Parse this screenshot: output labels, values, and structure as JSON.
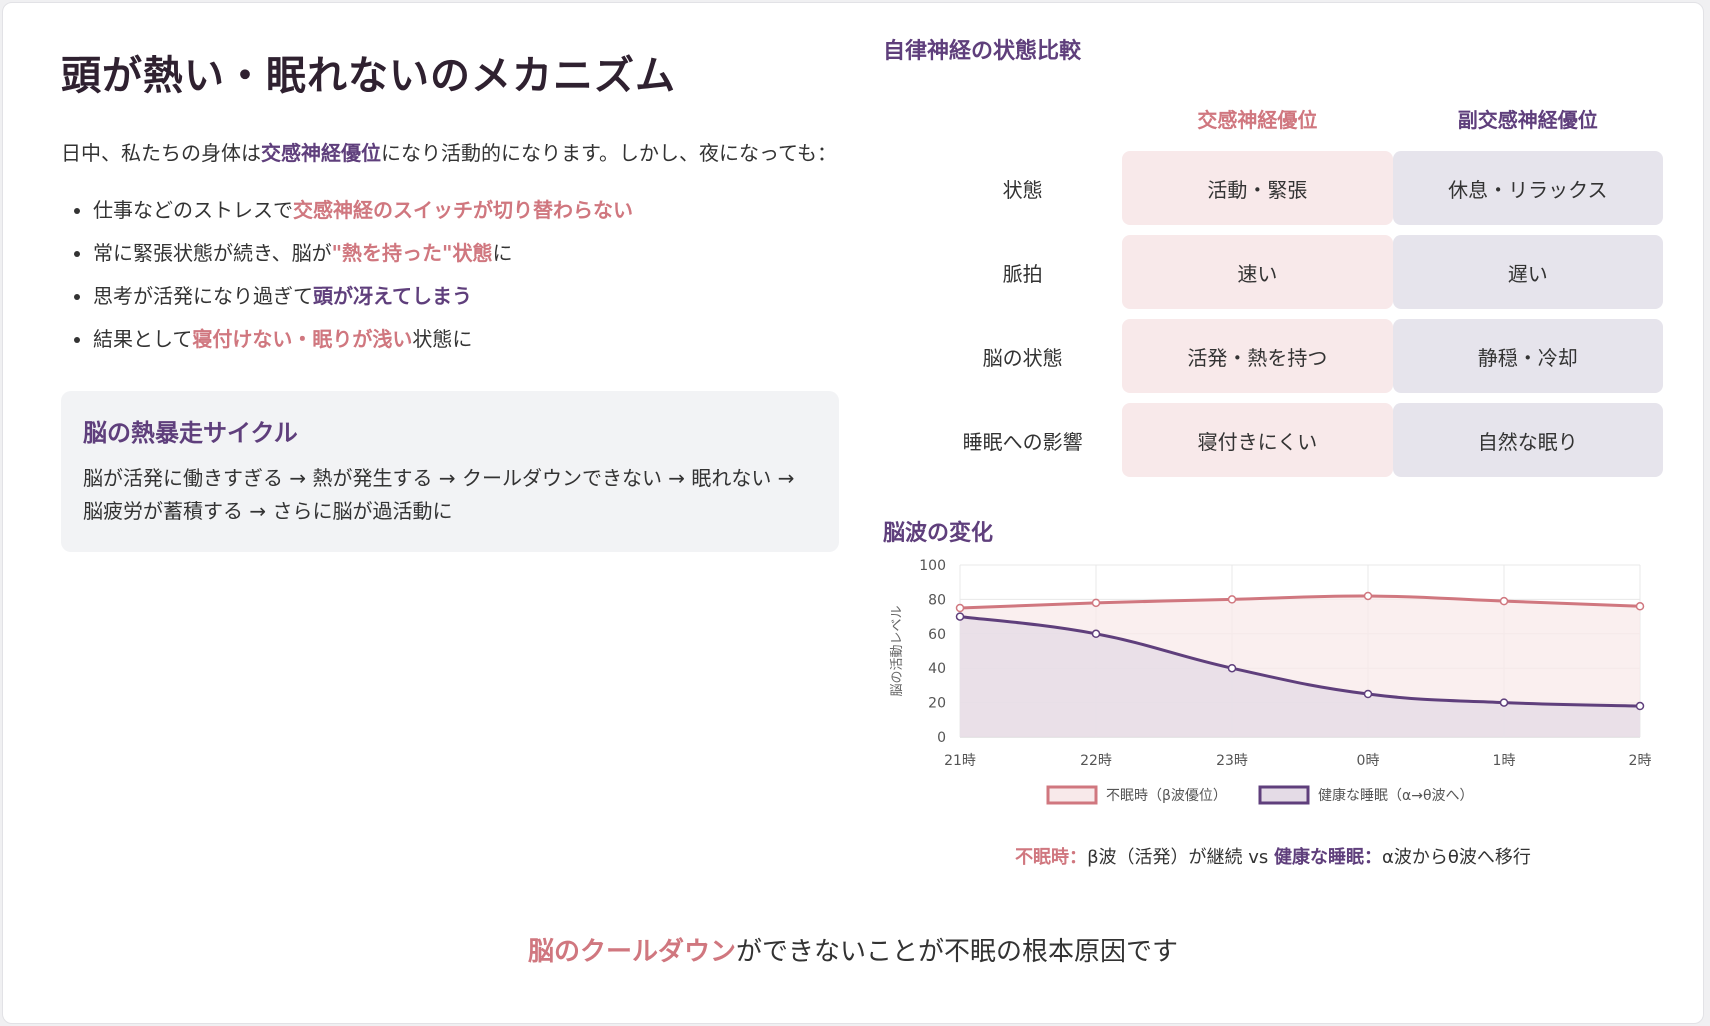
{
  "left": {
    "title": "頭が熱い・眠れないのメカニズム",
    "intro": {
      "pre": "日中、私たちの身体は",
      "highlight": "交感神経優位",
      "post": "になり活動的になります。しかし、夜になっても："
    },
    "points": [
      {
        "pre": "仕事などのストレスで",
        "highlight": "交感神経のスイッチが切り替わらない",
        "post": ""
      },
      {
        "pre": "常に緊張状態が続き、脳が",
        "highlight": "\"熱を持った\"状態",
        "post": "に"
      },
      {
        "pre": "思考が活発になり過ぎて",
        "highlight": "頭が冴えてしまう",
        "post": ""
      },
      {
        "pre": "結果として",
        "highlight": "寝付けない・眠りが浅い",
        "post": "状態に"
      }
    ],
    "cycle": {
      "title": "脳の熱暴走サイクル",
      "text": "脳が活発に働きすぎる → 熱が発生する → クールダウンできない → 眠れない → 脳疲労が蓄積する → さらに脳が過活動に"
    }
  },
  "comparison": {
    "title": "自律神経の状態比較",
    "headers": {
      "sympathetic": "交感神経優位",
      "parasympathetic": "副交感神経優位"
    },
    "rows": [
      {
        "label": "状態",
        "sympathetic": "活動・緊張",
        "parasympathetic": "休息・リラックス"
      },
      {
        "label": "脈拍",
        "sympathetic": "速い",
        "parasympathetic": "遅い"
      },
      {
        "label": "脳の状態",
        "sympathetic": "活発・熱を持つ",
        "parasympathetic": "静穏・冷却"
      },
      {
        "label": "睡眠への影響",
        "sympathetic": "寝付きにくい",
        "parasympathetic": "自然な眠り"
      }
    ]
  },
  "brainwave": {
    "title": "脳波の変化",
    "caption": {
      "a_label": "不眠時：",
      "a_text": "β波（活発）が継続 vs ",
      "b_label": "健康な睡眠：",
      "b_text": "α波からθ波へ移行"
    }
  },
  "chart_data": {
    "type": "area",
    "categories": [
      "21時",
      "22時",
      "23時",
      "0時",
      "1時",
      "2時"
    ],
    "ylabel": "脳の活動レベル",
    "ylim": [
      0,
      100
    ],
    "yticks": [
      0,
      20,
      40,
      60,
      80,
      100
    ],
    "grid": true,
    "legend_position": "bottom",
    "series": [
      {
        "name": "不眠時（β波優位）",
        "values": [
          75,
          78,
          80,
          82,
          79,
          76
        ],
        "color": "#d0777f",
        "fill": "#f8e9ea"
      },
      {
        "name": "健康な睡眠（α→θ波へ）",
        "values": [
          70,
          60,
          40,
          25,
          20,
          18
        ],
        "color": "#5f3f7c",
        "fill": "#e4dbe6"
      }
    ]
  },
  "bottom": {
    "highlight": "脳のクールダウン",
    "text": "ができないことが不眠の根本原因です"
  },
  "colors": {
    "accent_purple": "#5f3f7c",
    "accent_pink": "#d0777f",
    "sym_bg": "#f8e9ea",
    "para_bg": "#e6e4ec"
  }
}
